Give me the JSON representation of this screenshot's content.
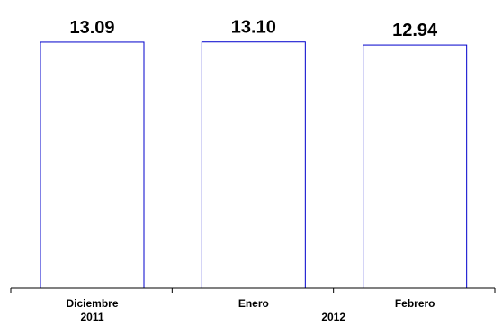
{
  "chart_data": {
    "type": "bar",
    "categories": [
      "Diciembre",
      "Enero",
      "Febrero"
    ],
    "values": [
      13.09,
      13.1,
      12.94
    ],
    "value_labels": [
      "13.09",
      "13.10",
      "12.94"
    ],
    "group_labels": [
      "2011",
      "2012"
    ],
    "bar_fill": "#ffffff",
    "bar_stroke": "#0000cc",
    "ylim": [
      0,
      14.52
    ],
    "grid": false,
    "legend": "none"
  }
}
